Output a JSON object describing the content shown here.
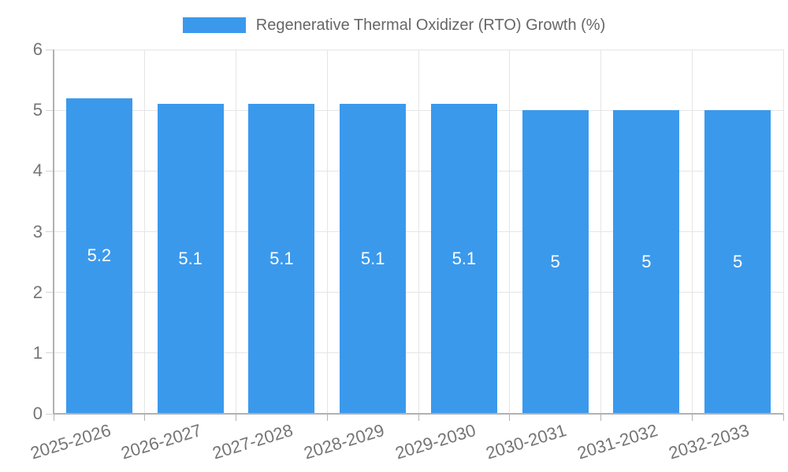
{
  "legend": {
    "label": "Regenerative Thermal Oxidizer (RTO) Growth (%)",
    "swatch_color": "#3b99ec"
  },
  "chart_data": {
    "type": "bar",
    "title": "Regenerative Thermal Oxidizer (RTO) Growth (%)",
    "categories": [
      "2025-2026",
      "2026-2027",
      "2027-2028",
      "2028-2029",
      "2029-2030",
      "2030-2031",
      "2031-2032",
      "2032-2033"
    ],
    "values": [
      5.2,
      5.1,
      5.1,
      5.1,
      5.1,
      5,
      5,
      5
    ],
    "bar_labels": [
      "5.2",
      "5.1",
      "5.1",
      "5.1",
      "5.1",
      "5",
      "5",
      "5"
    ],
    "xlabel": "",
    "ylabel": "",
    "ylim": [
      0,
      6
    ],
    "yticks": [
      0,
      1,
      2,
      3,
      4,
      5,
      6
    ],
    "grid": true,
    "legend_position": "top",
    "colors": {
      "bar": "#3b99ec",
      "value_label": "#ffffff",
      "axis_text": "#757575",
      "legend_text": "#666666",
      "grid": "#e5e5e5",
      "axis_line": "#b1b1b1"
    }
  }
}
